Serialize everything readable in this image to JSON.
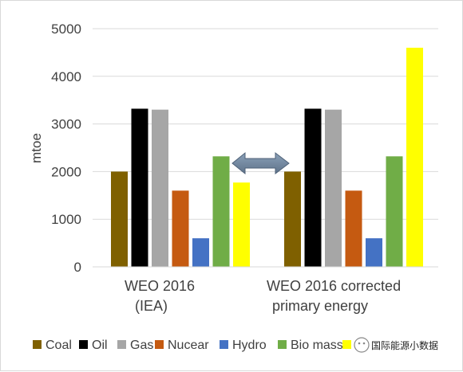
{
  "chart_data": {
    "type": "bar",
    "ylabel": "mtoe",
    "ylim": [
      0,
      5000
    ],
    "yticks": [
      0,
      1000,
      2000,
      3000,
      4000,
      5000
    ],
    "categories": [
      [
        "WEO 2016",
        "(IEA)"
      ],
      [
        "WEO 2016 corrected",
        "primary energy"
      ]
    ],
    "series": [
      {
        "name": "Coal",
        "color": "#7f6000",
        "values": [
          2000,
          2000
        ]
      },
      {
        "name": "Oil",
        "color": "#000000",
        "values": [
          3320,
          3320
        ]
      },
      {
        "name": "Gas",
        "color": "#a6a6a6",
        "values": [
          3300,
          3300
        ]
      },
      {
        "name": "Nucear",
        "color": "#c55a11",
        "values": [
          1600,
          1600
        ]
      },
      {
        "name": "Hydro",
        "color": "#4472c4",
        "values": [
          600,
          600
        ]
      },
      {
        "name": "Bio mass",
        "color": "#70ad47",
        "values": [
          2320,
          2320
        ]
      },
      {
        "name": "",
        "color": "#ffff00",
        "values": [
          1770,
          4600
        ]
      }
    ],
    "grid": true,
    "legend_position": "bottom",
    "annotation": "double-headed arrow between the two groups"
  },
  "watermark": {
    "text": "国际能源小数据"
  }
}
